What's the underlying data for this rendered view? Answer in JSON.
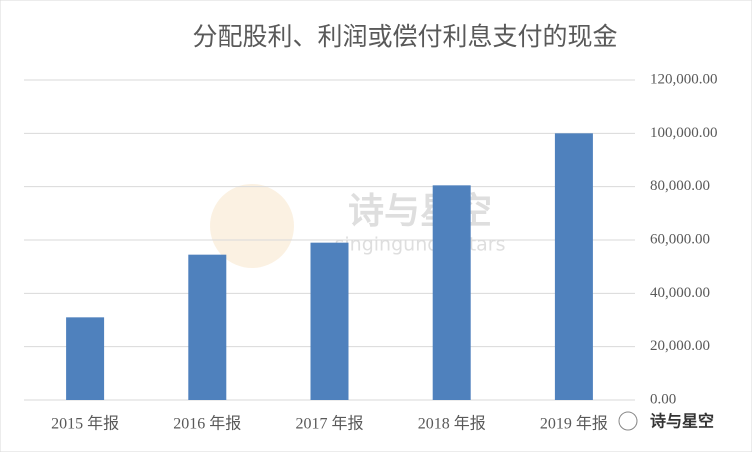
{
  "chart_data": {
    "type": "bar",
    "title": "分配股利、利润或偿付利息支付的现金",
    "categories": [
      "2015 年报",
      "2016 年报",
      "2017 年报",
      "2018 年报",
      "2019 年报"
    ],
    "values": [
      31000,
      54500,
      59000,
      80500,
      100000
    ],
    "color": "#4f81bd",
    "ylim": [
      0,
      120000
    ],
    "yticks": [
      {
        "value": 0,
        "label": "0.00"
      },
      {
        "value": 20000,
        "label": "20,000.00"
      },
      {
        "value": 40000,
        "label": "40,000.00"
      },
      {
        "value": 60000,
        "label": "60,000.00"
      },
      {
        "value": 80000,
        "label": "80,000.00"
      },
      {
        "value": 100000,
        "label": "100,000.00"
      },
      {
        "value": 120000,
        "label": "120,000.00"
      }
    ],
    "grid": true,
    "watermark": [
      "诗与星空",
      "singingunderstars"
    ],
    "logo_text": "诗与星空"
  }
}
